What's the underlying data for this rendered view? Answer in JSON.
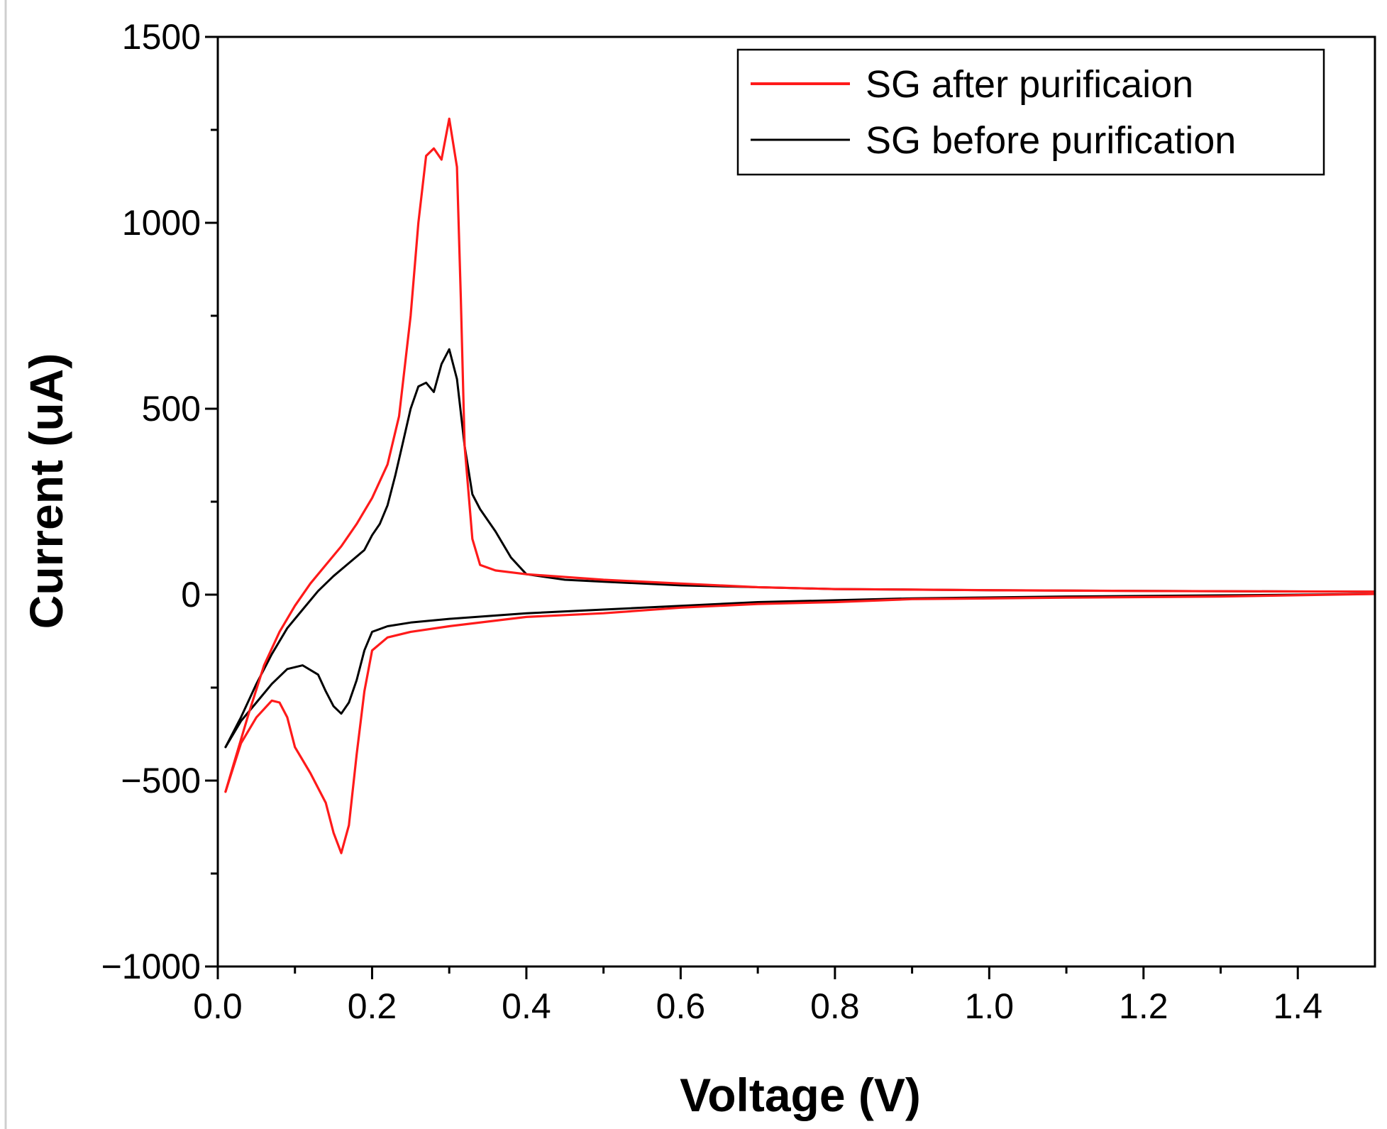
{
  "chart_data": {
    "type": "line",
    "title": "",
    "xlabel": "Voltage (V)",
    "ylabel": "Current (uA)",
    "xlim": [
      0,
      1.5
    ],
    "ylim": [
      -1000,
      1500
    ],
    "x_ticks": [
      0.0,
      0.2,
      0.4,
      0.6,
      0.8,
      1.0,
      1.2,
      1.4
    ],
    "x_tick_labels": [
      "0.0",
      "0.2",
      "0.4",
      "0.6",
      "0.8",
      "1.0",
      "1.2",
      "1.4"
    ],
    "y_ticks": [
      -1000,
      -500,
      0,
      500,
      1000,
      1500
    ],
    "y_tick_labels": [
      "−1000",
      "−500",
      "0",
      "500",
      "1000",
      "1500"
    ],
    "grid": false,
    "legend_position": "top-right",
    "series": [
      {
        "name": "SG after purificaion",
        "color": "#ff1a1a",
        "anodic": [
          [
            0.01,
            -530
          ],
          [
            0.02,
            -460
          ],
          [
            0.04,
            -320
          ],
          [
            0.06,
            -190
          ],
          [
            0.08,
            -100
          ],
          [
            0.1,
            -30
          ],
          [
            0.12,
            30
          ],
          [
            0.14,
            80
          ],
          [
            0.16,
            130
          ],
          [
            0.18,
            190
          ],
          [
            0.2,
            260
          ],
          [
            0.22,
            350
          ],
          [
            0.235,
            480
          ],
          [
            0.25,
            750
          ],
          [
            0.26,
            1000
          ],
          [
            0.27,
            1180
          ],
          [
            0.28,
            1200
          ],
          [
            0.29,
            1170
          ],
          [
            0.3,
            1280
          ],
          [
            0.31,
            1150
          ],
          [
            0.315,
            800
          ],
          [
            0.32,
            400
          ],
          [
            0.33,
            150
          ],
          [
            0.34,
            80
          ],
          [
            0.36,
            65
          ],
          [
            0.4,
            55
          ],
          [
            0.5,
            40
          ],
          [
            0.6,
            30
          ],
          [
            0.7,
            20
          ],
          [
            0.8,
            15
          ],
          [
            1.0,
            12
          ],
          [
            1.2,
            10
          ],
          [
            1.5,
            8
          ]
        ],
        "cathodic": [
          [
            1.5,
            2
          ],
          [
            1.3,
            -5
          ],
          [
            1.1,
            -8
          ],
          [
            0.9,
            -12
          ],
          [
            0.8,
            -20
          ],
          [
            0.7,
            -25
          ],
          [
            0.6,
            -35
          ],
          [
            0.5,
            -50
          ],
          [
            0.4,
            -60
          ],
          [
            0.3,
            -85
          ],
          [
            0.25,
            -100
          ],
          [
            0.22,
            -115
          ],
          [
            0.2,
            -150
          ],
          [
            0.19,
            -260
          ],
          [
            0.18,
            -430
          ],
          [
            0.17,
            -620
          ],
          [
            0.16,
            -695
          ],
          [
            0.15,
            -640
          ],
          [
            0.14,
            -560
          ],
          [
            0.12,
            -480
          ],
          [
            0.1,
            -410
          ],
          [
            0.09,
            -330
          ],
          [
            0.08,
            -290
          ],
          [
            0.07,
            -285
          ],
          [
            0.05,
            -330
          ],
          [
            0.03,
            -400
          ],
          [
            0.01,
            -530
          ]
        ]
      },
      {
        "name": "SG before purification",
        "color": "#000000",
        "anodic": [
          [
            0.01,
            -410
          ],
          [
            0.03,
            -330
          ],
          [
            0.05,
            -240
          ],
          [
            0.07,
            -160
          ],
          [
            0.09,
            -90
          ],
          [
            0.11,
            -40
          ],
          [
            0.13,
            10
          ],
          [
            0.15,
            50
          ],
          [
            0.17,
            85
          ],
          [
            0.19,
            120
          ],
          [
            0.2,
            160
          ],
          [
            0.21,
            190
          ],
          [
            0.22,
            240
          ],
          [
            0.23,
            320
          ],
          [
            0.24,
            410
          ],
          [
            0.25,
            500
          ],
          [
            0.26,
            560
          ],
          [
            0.27,
            570
          ],
          [
            0.28,
            545
          ],
          [
            0.29,
            620
          ],
          [
            0.3,
            660
          ],
          [
            0.31,
            580
          ],
          [
            0.32,
            400
          ],
          [
            0.33,
            270
          ],
          [
            0.34,
            230
          ],
          [
            0.36,
            170
          ],
          [
            0.38,
            100
          ],
          [
            0.4,
            55
          ],
          [
            0.45,
            40
          ],
          [
            0.5,
            35
          ],
          [
            0.6,
            25
          ],
          [
            0.7,
            20
          ],
          [
            0.8,
            15
          ],
          [
            1.0,
            12
          ],
          [
            1.2,
            10
          ],
          [
            1.5,
            8
          ]
        ],
        "cathodic": [
          [
            1.5,
            2
          ],
          [
            1.3,
            -2
          ],
          [
            1.1,
            -5
          ],
          [
            0.9,
            -10
          ],
          [
            0.8,
            -15
          ],
          [
            0.7,
            -20
          ],
          [
            0.6,
            -30
          ],
          [
            0.5,
            -40
          ],
          [
            0.4,
            -50
          ],
          [
            0.3,
            -65
          ],
          [
            0.25,
            -75
          ],
          [
            0.22,
            -85
          ],
          [
            0.2,
            -100
          ],
          [
            0.19,
            -150
          ],
          [
            0.18,
            -230
          ],
          [
            0.17,
            -290
          ],
          [
            0.16,
            -320
          ],
          [
            0.15,
            -300
          ],
          [
            0.14,
            -260
          ],
          [
            0.13,
            -215
          ],
          [
            0.11,
            -190
          ],
          [
            0.09,
            -200
          ],
          [
            0.07,
            -240
          ],
          [
            0.05,
            -290
          ],
          [
            0.03,
            -340
          ],
          [
            0.01,
            -410
          ]
        ]
      }
    ]
  }
}
